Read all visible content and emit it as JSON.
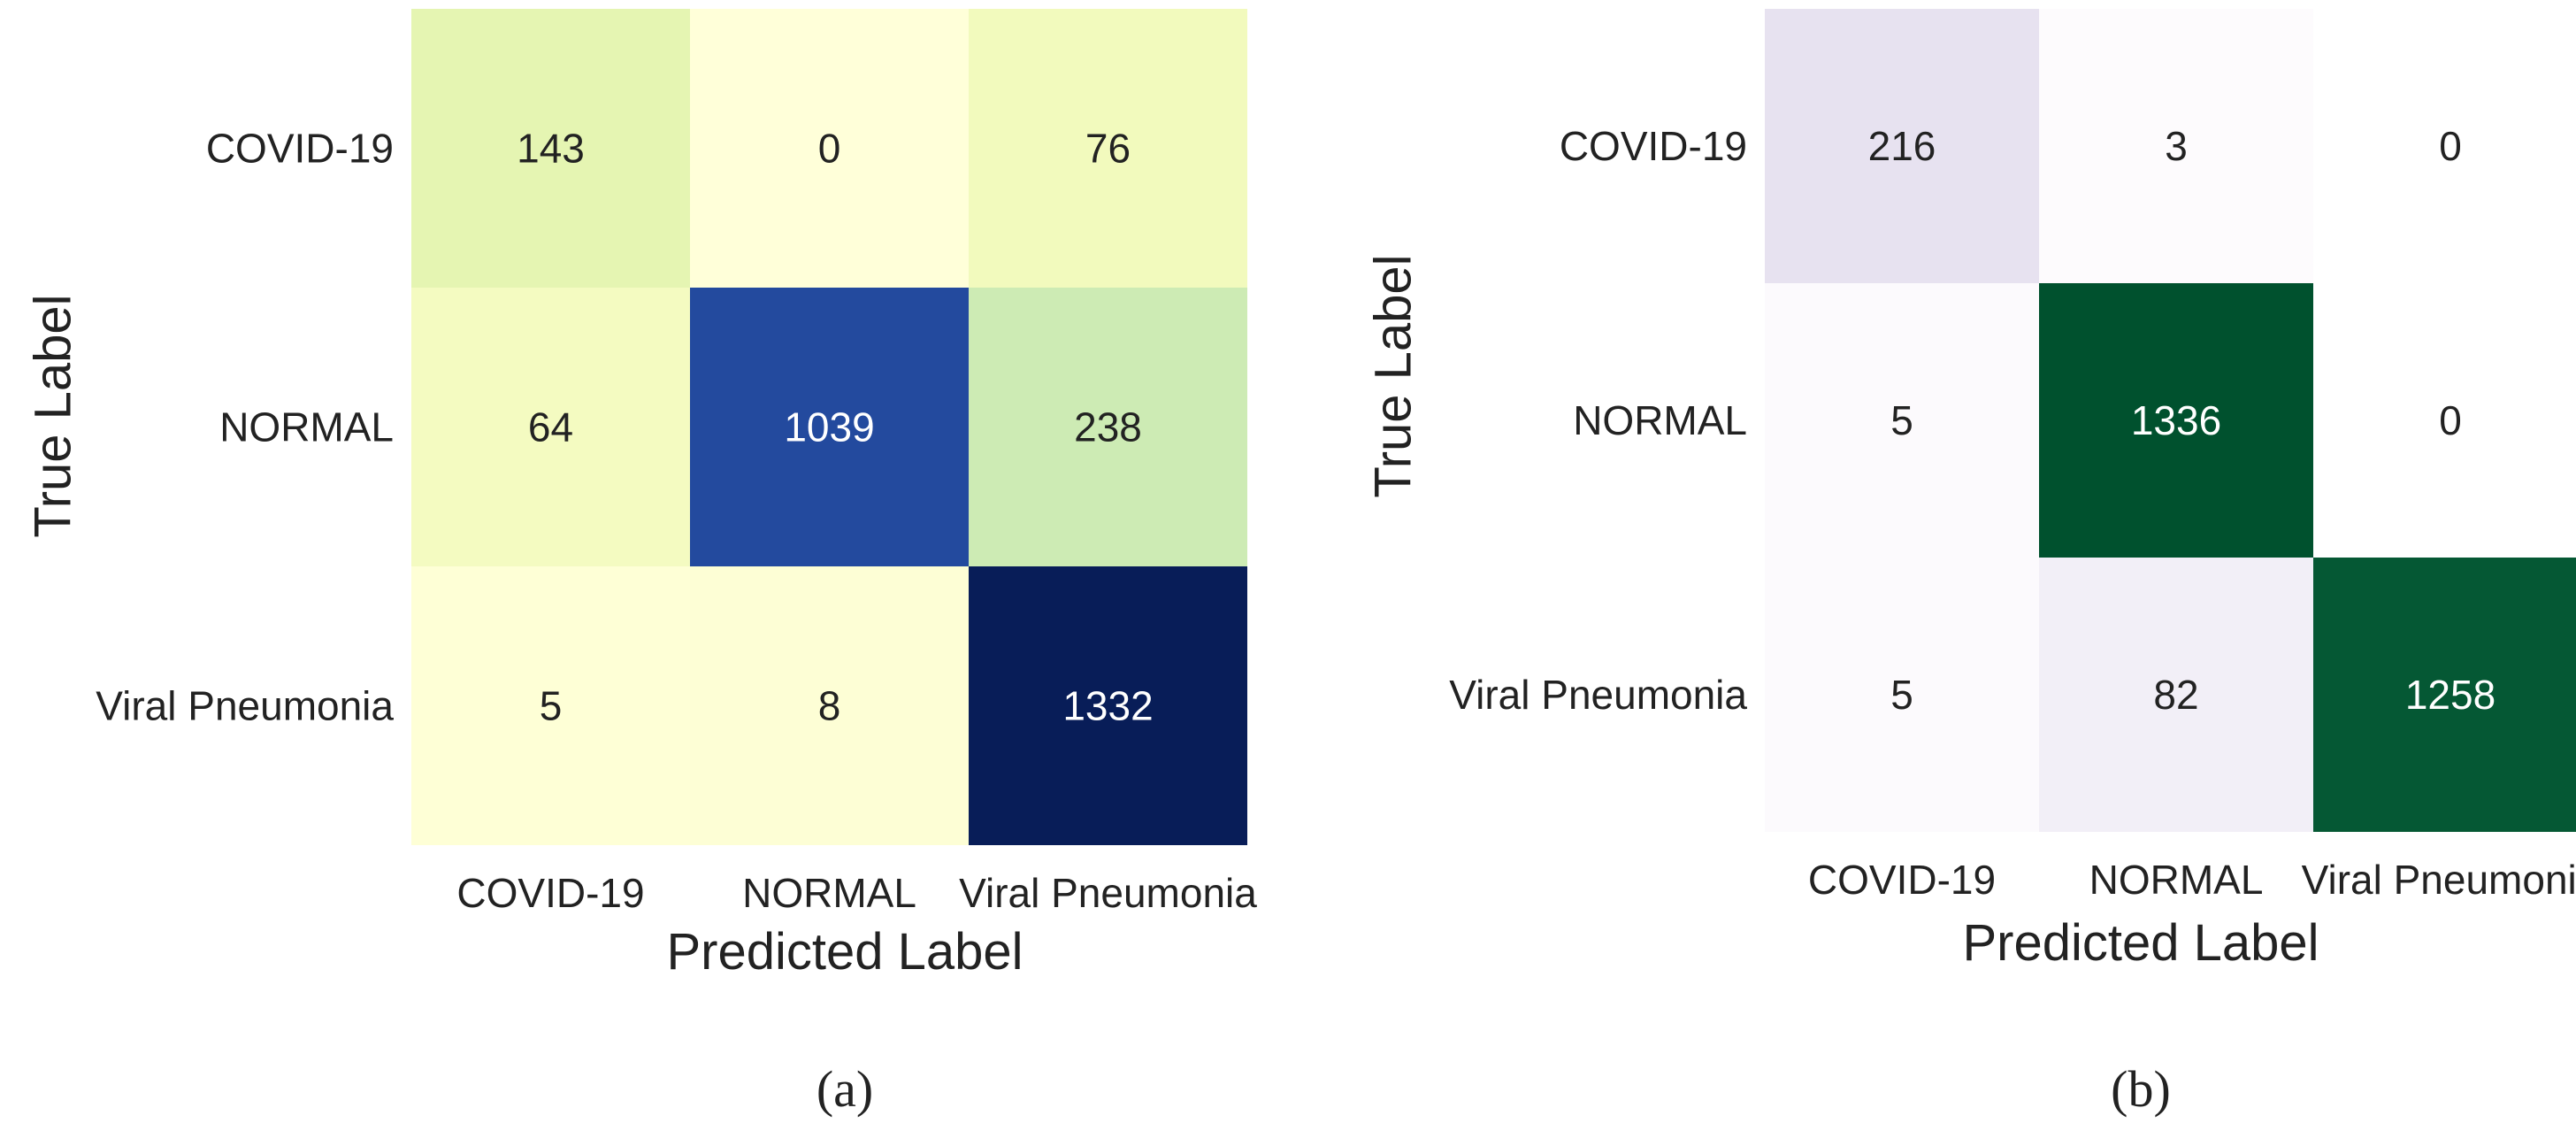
{
  "chart_data": [
    {
      "type": "heatmap",
      "panel_label": "(a)",
      "xlabel": "Predicted Label",
      "ylabel": "True Label",
      "categories_x": [
        "COVID-19",
        "NORMAL",
        "Viral Pneumonia"
      ],
      "categories_y": [
        "COVID-19",
        "NORMAL",
        "Viral Pneumonia"
      ],
      "values": [
        [
          143,
          0,
          76
        ],
        [
          64,
          1039,
          238
        ],
        [
          5,
          8,
          1332
        ]
      ],
      "colormap": "YlGnBu",
      "colorbar": false
    },
    {
      "type": "heatmap",
      "panel_label": "(b)",
      "xlabel": "Predicted Label",
      "ylabel": "True Label",
      "categories_x": [
        "COVID-19",
        "NORMAL",
        "Viral Pneumonia"
      ],
      "categories_y": [
        "COVID-19",
        "NORMAL",
        "Viral Pneumonia"
      ],
      "values": [
        [
          216,
          3,
          0
        ],
        [
          5,
          1336,
          0
        ],
        [
          5,
          82,
          1258
        ]
      ],
      "colormap": "PRGn",
      "colorbar": false
    }
  ]
}
